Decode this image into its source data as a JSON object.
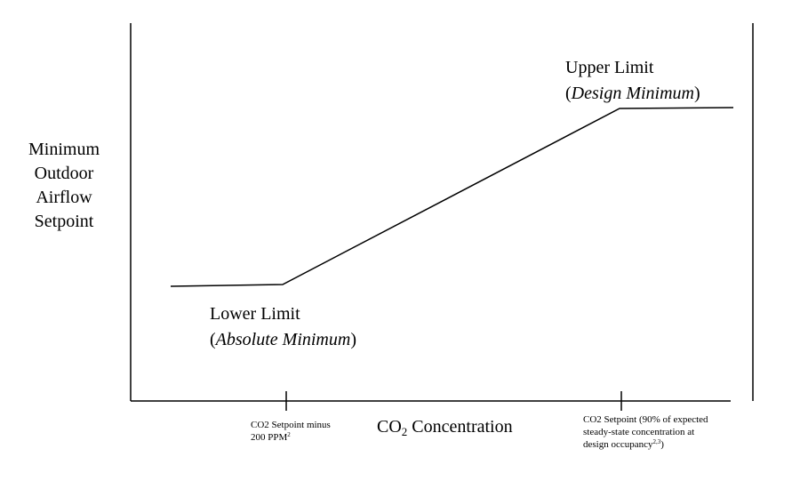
{
  "y_label_lines": [
    "Minimum",
    "Outdoor",
    "Airflow",
    "Setpoint"
  ],
  "upper_limit": {
    "line1": "Upper Limit",
    "open": "(",
    "emphasis": "Design Minimum",
    "close": ")"
  },
  "lower_limit": {
    "line1": "Lower Limit",
    "open": "(",
    "emphasis": "Absolute Minimum",
    "close": ")"
  },
  "x_title": {
    "prefix": "CO",
    "subscript": "2",
    "suffix": " Concentration"
  },
  "tick_left": {
    "line1": "CO2 Setpoint minus",
    "line2": "200 PPM",
    "sup": "2"
  },
  "tick_right": {
    "line1": "CO2 Setpoint (90% of expected",
    "line2": "steady-state concentration at",
    "line3": "design occupancy",
    "sup": "2,3",
    "close": ")"
  },
  "colors": {
    "line": "#000000",
    "background": "#ffffff"
  }
}
